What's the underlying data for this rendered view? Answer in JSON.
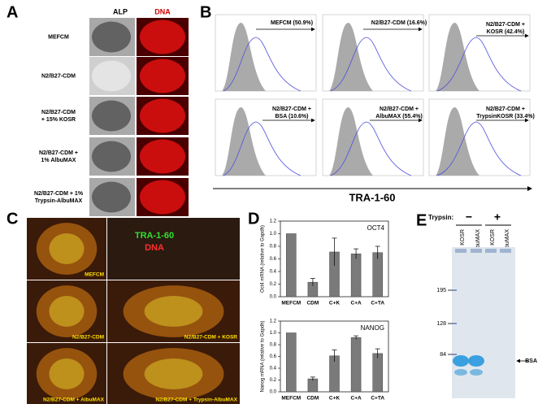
{
  "panels": {
    "a": {
      "label": "A",
      "columns": [
        "ALP",
        "DNA"
      ],
      "rows": [
        [
          "MEFCM"
        ],
        [
          "N2/B27-CDM"
        ],
        [
          "N2/B27-CDM",
          "+ 15% KOSR"
        ],
        [
          "N2/B27-CDM +",
          "1% AlbuMAX"
        ],
        [
          "N2/B27-CDM + 1%",
          "Trypsin-AlbuMAX"
        ]
      ]
    },
    "b": {
      "label": "B",
      "x_label": "TRA-1-60",
      "histograms": [
        [
          "MEFCM (50.9%)"
        ],
        [
          "N2/B27-CDM (16.6%)"
        ],
        [
          "N2/B27-CDM +",
          "KOSR (42.4%)"
        ],
        [
          "N2/B27-CDM +",
          "BSA (10.6%)"
        ],
        [
          "N2/B27-CDM +",
          "AlbuMAX (55.4%)"
        ],
        [
          "N2/B27-CDM +",
          "TrypsinKOSR (33.4%)"
        ]
      ]
    },
    "c": {
      "label": "C",
      "legend": [
        "TRA-1-60",
        "DNA"
      ],
      "images": [
        "MEFCM",
        "N2/B27-CDM",
        "N2/B27-CDM + KOSR",
        "N2/B27-CDM + AlbuMAX",
        "N2/B27-CDM + Trypsin-AlbuMAX"
      ]
    },
    "d": {
      "label": "D"
    },
    "e": {
      "label": "E",
      "trypsin": "Trypsin:",
      "minus": "−",
      "plus": "+",
      "lanes": [
        "KOSR",
        "AlbuMAX",
        "KOSR",
        "AlbuMAX"
      ],
      "markers": [
        195,
        128,
        84
      ],
      "band": "BSA"
    }
  },
  "chart_data": [
    {
      "type": "bar",
      "title": "OCT4",
      "y_label": "Oct4 mRNA (relative to Gapdh)",
      "color": "#7a7a7a",
      "categories": [
        "MEFCM",
        "CDM",
        "C+K",
        "C+A",
        "C+TA"
      ],
      "values": [
        1.0,
        0.23,
        0.71,
        0.68,
        0.7
      ],
      "errors": [
        0,
        0.06,
        0.22,
        0.08,
        0.1
      ],
      "ylim": [
        0,
        1.2
      ],
      "yticks": [
        {
          "value": 0,
          "label": "0.0"
        },
        0.2,
        0.4,
        0.6,
        0.8,
        {
          "value": 1,
          "label": "1.0"
        },
        1.2
      ]
    },
    {
      "type": "bar",
      "title": "NANOG",
      "y_label": "Nanog mRNA (relative to Gapdh)",
      "color": "#7a7a7a",
      "categories": [
        "MEFCM",
        "CDM",
        "C+K",
        "C+A",
        "C+TA"
      ],
      "values": [
        1.0,
        0.22,
        0.61,
        0.92,
        0.65
      ],
      "errors": [
        0,
        0.03,
        0.1,
        0.03,
        0.08
      ],
      "ylim": [
        0,
        1.2
      ],
      "yticks": [
        {
          "value": 0,
          "label": "0.0"
        },
        0.2,
        0.4,
        0.6,
        0.8,
        {
          "value": 1,
          "label": "1.0"
        },
        1.2
      ]
    }
  ]
}
